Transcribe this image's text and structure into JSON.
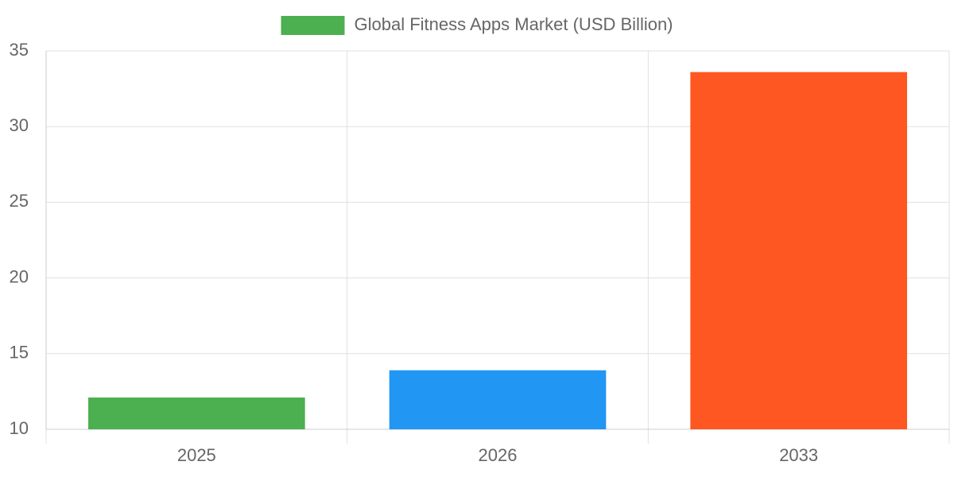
{
  "chart_data": {
    "type": "bar",
    "categories": [
      "2025",
      "2026",
      "2033"
    ],
    "series": [
      {
        "name": "Global Fitness Apps Market (USD Billion)",
        "colors": [
          "#4caf50",
          "#2196f3",
          "#ff5722"
        ],
        "values": [
          12.1,
          13.9,
          33.6
        ]
      }
    ],
    "ylim": [
      10,
      35
    ],
    "yticks": [
      10,
      15,
      20,
      25,
      30,
      35
    ],
    "grid": true,
    "legend": "top"
  }
}
